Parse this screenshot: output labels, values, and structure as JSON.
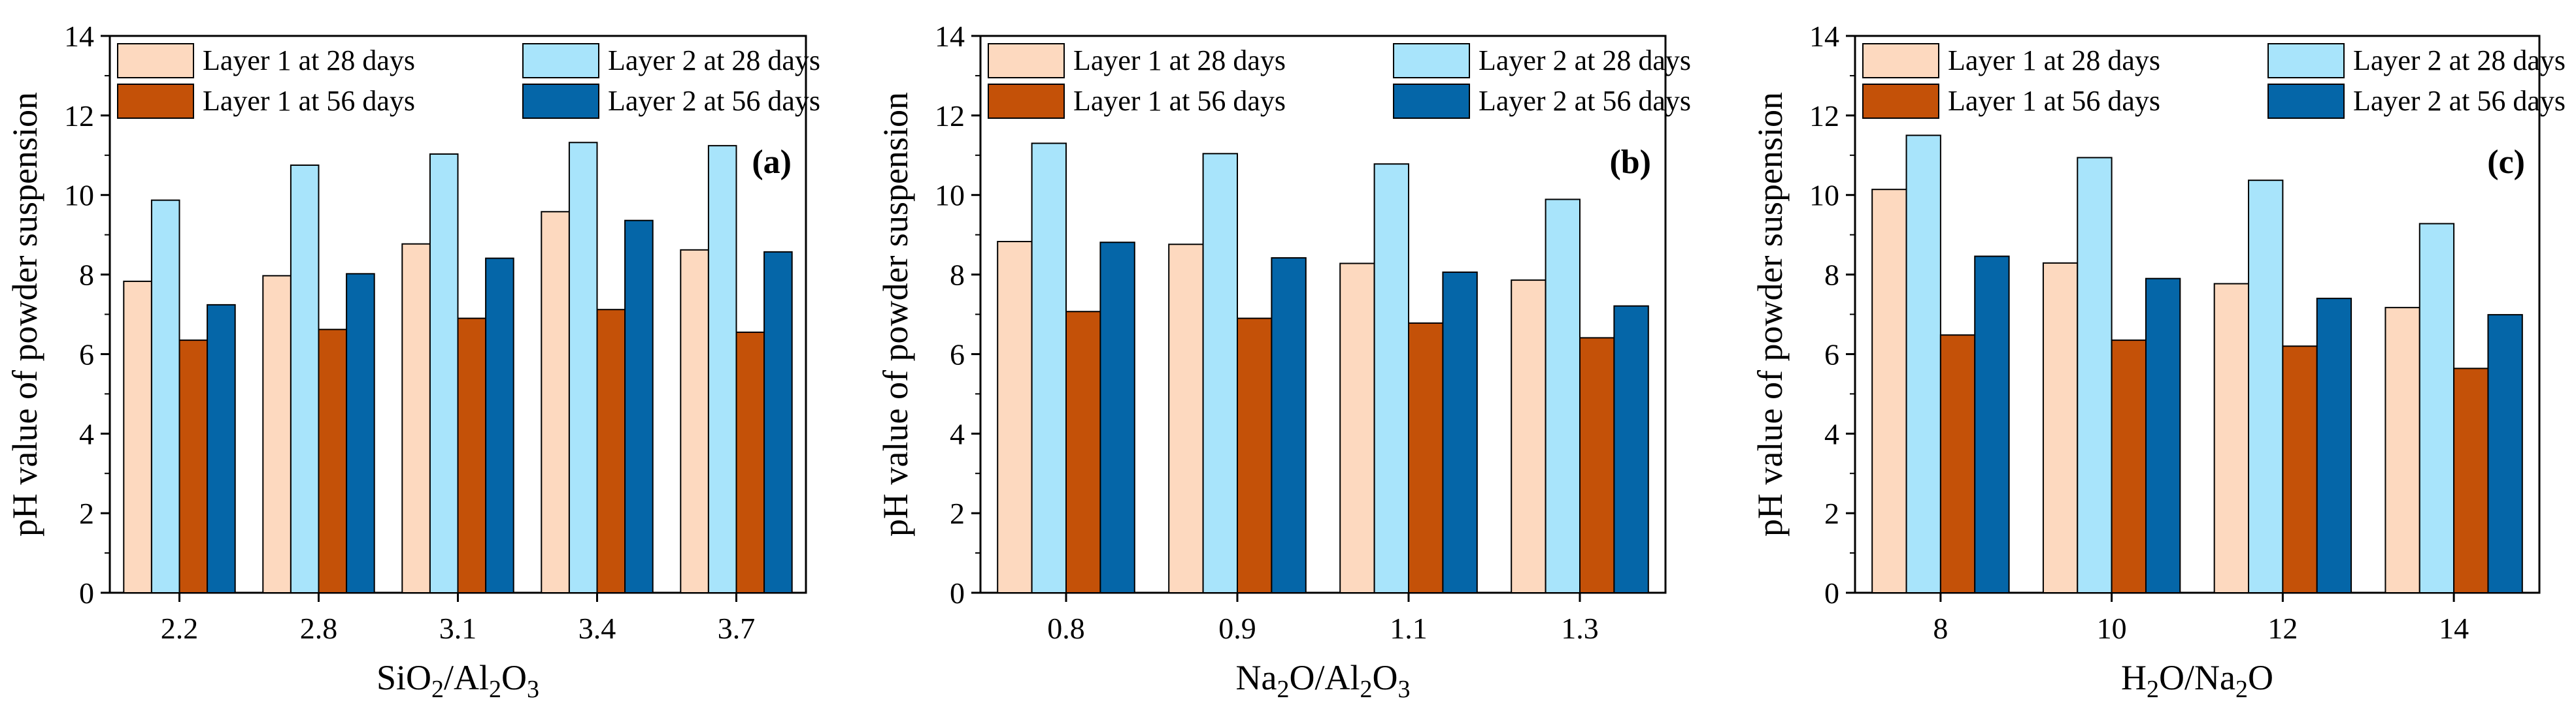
{
  "colors": {
    "layer1_28": "#FDD9BF",
    "layer2_28": "#A8E4FB",
    "layer1_56": "#C45108",
    "layer2_56": "#0566A8",
    "axis": "#000000",
    "bar_stroke": "#000000"
  },
  "chart_data": [
    {
      "type": "bar",
      "panel_label": "(a)",
      "xlabel_parts": [
        [
          "SiO",
          false
        ],
        [
          "2",
          true
        ],
        [
          "/Al",
          false
        ],
        [
          "2",
          true
        ],
        [
          "O",
          false
        ],
        [
          "3",
          true
        ]
      ],
      "ylabel": "pH value of powder suspension",
      "ylim": [
        0,
        14
      ],
      "yticks": [
        "0",
        "2",
        "4",
        "6",
        "8",
        "10",
        "12",
        "14"
      ],
      "categories": [
        "2.2",
        "2.8",
        "3.1",
        "3.4",
        "3.7"
      ],
      "legend_position": "top-left",
      "series": [
        {
          "name": "Layer 1 at 28 days",
          "color_key": "layer1_28",
          "values": [
            7.83,
            7.97,
            8.77,
            9.58,
            8.62
          ]
        },
        {
          "name": "Layer 2 at 28 days",
          "color_key": "layer2_28",
          "values": [
            9.87,
            10.75,
            11.03,
            11.32,
            11.24
          ]
        },
        {
          "name": "Layer 1 at 56 days",
          "color_key": "layer1_56",
          "values": [
            6.35,
            6.62,
            6.9,
            7.12,
            6.55
          ]
        },
        {
          "name": "Layer 2 at 56 days",
          "color_key": "layer2_56",
          "values": [
            7.24,
            8.02,
            8.41,
            9.36,
            8.57
          ]
        }
      ]
    },
    {
      "type": "bar",
      "panel_label": "(b)",
      "xlabel_parts": [
        [
          "Na",
          false
        ],
        [
          "2",
          true
        ],
        [
          "O/Al",
          false
        ],
        [
          "2",
          true
        ],
        [
          "O",
          false
        ],
        [
          "3",
          true
        ]
      ],
      "ylabel": "pH value of powder suspension",
      "ylim": [
        0,
        14
      ],
      "yticks": [
        "0",
        "2",
        "4",
        "6",
        "8",
        "10",
        "12",
        "14"
      ],
      "categories": [
        "0.8",
        "0.9",
        "1.1",
        "1.3"
      ],
      "legend_position": "top-left",
      "series": [
        {
          "name": "Layer 1 at 28 days",
          "color_key": "layer1_28",
          "values": [
            8.83,
            8.76,
            8.28,
            7.86
          ]
        },
        {
          "name": "Layer 2 at 28 days",
          "color_key": "layer2_28",
          "values": [
            11.3,
            11.04,
            10.78,
            9.89
          ]
        },
        {
          "name": "Layer 1 at 56 days",
          "color_key": "layer1_56",
          "values": [
            7.07,
            6.9,
            6.78,
            6.41
          ]
        },
        {
          "name": "Layer 2 at 56 days",
          "color_key": "layer2_56",
          "values": [
            8.81,
            8.42,
            8.06,
            7.21
          ]
        }
      ]
    },
    {
      "type": "bar",
      "panel_label": "(c)",
      "xlabel_parts": [
        [
          "H",
          false
        ],
        [
          "2",
          true
        ],
        [
          "O/Na",
          false
        ],
        [
          "2",
          true
        ],
        [
          "O",
          false
        ]
      ],
      "ylabel": "pH value of powder suspension",
      "ylim": [
        0,
        14
      ],
      "yticks": [
        "0",
        "2",
        "4",
        "6",
        "8",
        "10",
        "12",
        "14"
      ],
      "categories": [
        "8",
        "10",
        "12",
        "14"
      ],
      "legend_position": "top-left",
      "series": [
        {
          "name": "Layer 1 at 28 days",
          "color_key": "layer1_28",
          "values": [
            10.14,
            8.29,
            7.77,
            7.17
          ]
        },
        {
          "name": "Layer 2 at 28 days",
          "color_key": "layer2_28",
          "values": [
            11.5,
            10.94,
            10.37,
            9.28
          ]
        },
        {
          "name": "Layer 1 at 56 days",
          "color_key": "layer1_56",
          "values": [
            6.48,
            6.35,
            6.2,
            5.64
          ]
        },
        {
          "name": "Layer 2 at 56 days",
          "color_key": "layer2_56",
          "values": [
            8.46,
            7.9,
            7.4,
            6.99
          ]
        }
      ]
    }
  ]
}
